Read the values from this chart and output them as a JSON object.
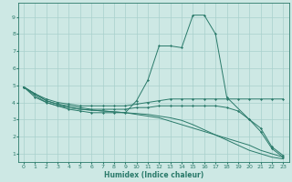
{
  "xlabel": "Humidex (Indice chaleur)",
  "ylabel": "",
  "xlim": [
    -0.5,
    23.5
  ],
  "ylim": [
    0.5,
    9.8
  ],
  "xticks": [
    0,
    1,
    2,
    3,
    4,
    5,
    6,
    7,
    8,
    9,
    10,
    11,
    12,
    13,
    14,
    15,
    16,
    17,
    18,
    19,
    20,
    21,
    22,
    23
  ],
  "yticks": [
    1,
    2,
    3,
    4,
    5,
    6,
    7,
    8,
    9
  ],
  "bg_color": "#cde8e4",
  "grid_color": "#a8d0cc",
  "line_color": "#2a7a6a",
  "lines": [
    {
      "x": [
        0,
        1,
        2,
        3,
        4,
        5,
        6,
        7,
        8,
        9,
        10,
        11,
        12,
        13,
        14,
        15,
        16,
        17,
        18,
        20,
        21,
        22,
        23
      ],
      "y": [
        4.9,
        4.3,
        4.0,
        3.8,
        3.6,
        3.5,
        3.4,
        3.4,
        3.4,
        3.4,
        4.1,
        5.3,
        7.3,
        7.3,
        7.2,
        9.1,
        9.1,
        8.0,
        4.3,
        3.0,
        2.3,
        1.3,
        0.8
      ],
      "marker": true
    },
    {
      "x": [
        0,
        1,
        2,
        3,
        4,
        5,
        6,
        7,
        8,
        9,
        10,
        11,
        12,
        13,
        14,
        15,
        16,
        17,
        18,
        19,
        20,
        21,
        22,
        23
      ],
      "y": [
        4.9,
        4.5,
        4.2,
        4.0,
        3.9,
        3.8,
        3.8,
        3.8,
        3.8,
        3.8,
        3.9,
        4.0,
        4.1,
        4.2,
        4.2,
        4.2,
        4.2,
        4.2,
        4.2,
        4.2,
        4.2,
        4.2,
        4.2,
        4.2
      ],
      "marker": true
    },
    {
      "x": [
        0,
        1,
        2,
        3,
        4,
        5,
        6,
        7,
        8,
        9,
        10,
        11,
        12,
        13,
        14,
        15,
        16,
        17,
        18,
        19,
        20,
        21,
        22,
        23
      ],
      "y": [
        4.9,
        4.5,
        4.1,
        3.9,
        3.8,
        3.7,
        3.6,
        3.6,
        3.6,
        3.6,
        3.7,
        3.7,
        3.8,
        3.8,
        3.8,
        3.8,
        3.8,
        3.8,
        3.7,
        3.5,
        3.0,
        2.5,
        1.4,
        0.9
      ],
      "marker": true
    },
    {
      "x": [
        0,
        1,
        2,
        3,
        4,
        5,
        6,
        7,
        8,
        9,
        10,
        11,
        12,
        13,
        14,
        15,
        16,
        17,
        18,
        19,
        20,
        21,
        22,
        23
      ],
      "y": [
        4.9,
        4.5,
        4.1,
        3.9,
        3.7,
        3.6,
        3.55,
        3.5,
        3.45,
        3.4,
        3.3,
        3.2,
        3.1,
        2.9,
        2.7,
        2.5,
        2.3,
        2.1,
        1.9,
        1.7,
        1.5,
        1.2,
        1.0,
        0.8
      ],
      "marker": false
    },
    {
      "x": [
        0,
        1,
        2,
        3,
        4,
        5,
        6,
        7,
        8,
        9,
        10,
        11,
        12,
        13,
        14,
        15,
        16,
        17,
        18,
        19,
        20,
        21,
        22,
        23
      ],
      "y": [
        4.9,
        4.4,
        4.0,
        3.8,
        3.7,
        3.6,
        3.55,
        3.5,
        3.45,
        3.4,
        3.35,
        3.3,
        3.2,
        3.1,
        2.95,
        2.7,
        2.4,
        2.1,
        1.8,
        1.5,
        1.2,
        1.0,
        0.8,
        0.7
      ],
      "marker": false
    }
  ]
}
